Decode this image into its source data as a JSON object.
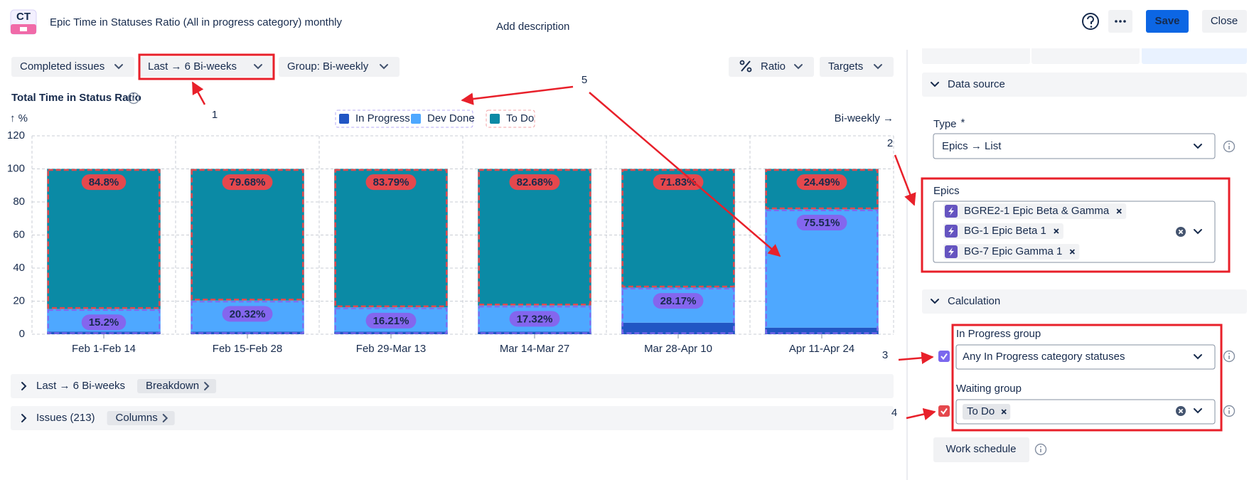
{
  "header": {
    "logo": "CT",
    "title": "Epic Time in Statuses Ratio (All in progress category) monthly",
    "add_description": "Add description",
    "save": "Save",
    "close": "Close"
  },
  "toolbar": {
    "completed": "Completed issues",
    "period": "Last → 6 Bi-weeks",
    "group": "Group: Bi-weekly",
    "ratio": "Ratio",
    "targets": "Targets"
  },
  "chart_data": {
    "type": "bar",
    "stacked": true,
    "title": "Total Time in Status Ratio",
    "y_label": "↑ %",
    "x_label": "Bi-weekly →",
    "categories": [
      "Feb 1-Feb 14",
      "Feb 15-Feb 28",
      "Feb 29-Mar 13",
      "Mar 14-Mar 27",
      "Mar 28-Apr 10",
      "Apr 11-Apr 24"
    ],
    "series": [
      {
        "name": "In Progress",
        "color": "#2156c4",
        "values": [
          1.5,
          1.5,
          1.5,
          1.5,
          7,
          4
        ]
      },
      {
        "name": "Dev Done",
        "color": "#4ea8ff",
        "values": [
          13.7,
          18.82,
          14.71,
          15.82,
          21.17,
          71.51
        ]
      },
      {
        "name": "To Do",
        "color": "#0b8aa5",
        "values": [
          84.8,
          79.68,
          83.79,
          82.68,
          71.83,
          24.49
        ]
      }
    ],
    "group_ratios": {
      "waiting": {
        "color": "#e5484d",
        "values": [
          84.8,
          79.68,
          83.79,
          82.68,
          71.83,
          24.49
        ],
        "value_labels": [
          "84.8%",
          "79.68%",
          "83.79%",
          "82.68%",
          "71.83%",
          "24.49%"
        ]
      },
      "in_progress": {
        "color": "#8466ee",
        "values": [
          15.2,
          20.32,
          16.21,
          17.32,
          28.17,
          75.51
        ],
        "value_labels": [
          "15.2%",
          "20.32%",
          "16.21%",
          "17.32%",
          "28.17%",
          "75.51%"
        ]
      }
    },
    "ylim": [
      0,
      120
    ],
    "yticks": [
      0,
      20,
      40,
      60,
      80,
      100,
      120
    ],
    "grid": true,
    "legend": "top"
  },
  "sections": [
    {
      "title": "Last → 6 Bi-weeks",
      "button": "Breakdown"
    },
    {
      "title": "Issues (213)",
      "button": "Columns"
    }
  ],
  "panel": {
    "data_source": "Data source",
    "type_label": "Type",
    "required": "*",
    "type_value": "Epics → List",
    "epics_label": "Epics",
    "epics": [
      "BGRE2-1 Epic Beta & Gamma",
      "BG-1 Epic Beta 1",
      "BG-7 Epic Gamma 1"
    ],
    "calculation": "Calculation",
    "in_progress_label": "In Progress group",
    "in_progress_value": "Any In Progress category statuses",
    "waiting_label": "Waiting group",
    "waiting_value": "To Do",
    "work_schedule": "Work schedule"
  },
  "annotations": [
    "1",
    "2",
    "3",
    "4",
    "5"
  ]
}
